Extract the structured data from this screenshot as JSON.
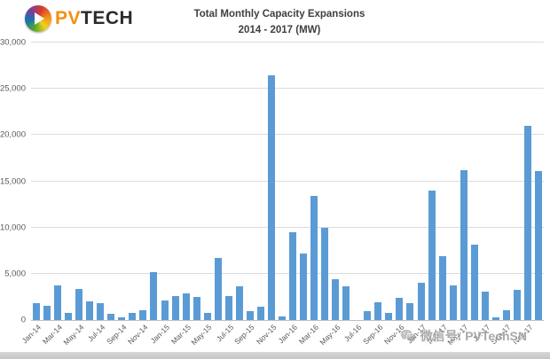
{
  "logo": {
    "pv": "PV",
    "tech": "TECH"
  },
  "title": {
    "line1": "Total Monthly Capacity Expansions",
    "line2": "2014 - 2017 (MW)"
  },
  "watermark": {
    "text": "微信号: PVTechSN"
  },
  "colors": {
    "bar": "#5b9bd5",
    "gridline": "#dcdcdc",
    "axis_text": "#595959",
    "title_text": "#404040",
    "logo_pv": "#f29111",
    "logo_tech": "#2b2b2b",
    "watermark_gray": "#9b9b9b"
  },
  "chart_data": {
    "type": "bar",
    "title": "Total Monthly Capacity Expansions 2014 - 2017 (MW)",
    "xlabel": "",
    "ylabel": "",
    "ylim": [
      0,
      30000
    ],
    "ytick_interval": 5000,
    "yticks": [
      "0",
      "5,000",
      "10,000",
      "15,000",
      "20,000",
      "25,000",
      "30,000"
    ],
    "grid": true,
    "legend": false,
    "xtick_labels_shown": [
      "Jan-14",
      "Mar-14",
      "May-14",
      "Jul-14",
      "Sep-14",
      "Nov-14",
      "Jan-15",
      "Mar-15",
      "May-15",
      "Jul-15",
      "Sep-15",
      "Nov-15",
      "Jan-16",
      "Mar-16",
      "May-16",
      "Jul-16",
      "Sep-16",
      "Nov-16",
      "Jan-17",
      "Mar-17",
      "May-17",
      "Jul-17",
      "Sep-17",
      "Nov-17"
    ],
    "categories": [
      "Jan-14",
      "Feb-14",
      "Mar-14",
      "Apr-14",
      "May-14",
      "Jun-14",
      "Jul-14",
      "Aug-14",
      "Sep-14",
      "Oct-14",
      "Nov-14",
      "Dec-14",
      "Jan-15",
      "Feb-15",
      "Mar-15",
      "Apr-15",
      "May-15",
      "Jun-15",
      "Jul-15",
      "Aug-15",
      "Sep-15",
      "Oct-15",
      "Nov-15",
      "Dec-15",
      "Jan-16",
      "Feb-16",
      "Mar-16",
      "Apr-16",
      "May-16",
      "Jun-16",
      "Jul-16",
      "Aug-16",
      "Sep-16",
      "Oct-16",
      "Nov-16",
      "Dec-16",
      "Jan-17",
      "Feb-17",
      "Mar-17",
      "Apr-17",
      "May-17",
      "Jun-17",
      "Jul-17",
      "Aug-17",
      "Sep-17",
      "Oct-17",
      "Nov-17",
      "Dec-17"
    ],
    "values": [
      1800,
      1500,
      3700,
      800,
      3400,
      2000,
      1800,
      700,
      250,
      800,
      1100,
      5200,
      2100,
      2600,
      2900,
      2450,
      800,
      6700,
      2600,
      3600,
      1000,
      1400,
      26500,
      400,
      9500,
      7200,
      13400,
      10000,
      4400,
      3600,
      0,
      1000,
      1900,
      800,
      2400,
      1800,
      4000,
      14000,
      6900,
      3700,
      16200,
      8100,
      3100,
      250,
      1100,
      3300,
      21000,
      16100
    ]
  }
}
